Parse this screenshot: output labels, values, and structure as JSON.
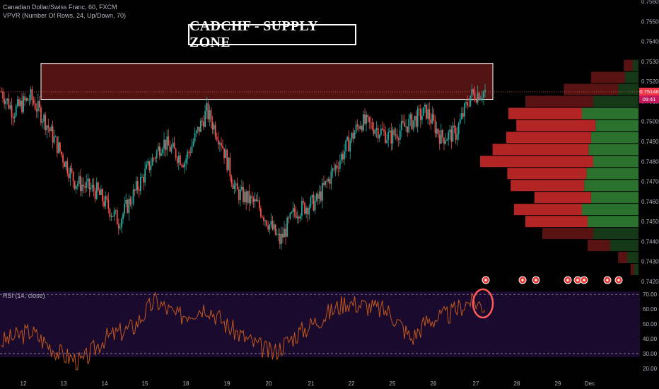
{
  "header": {
    "symbol_line": "Canadian Dollar/Swiss Franc, 60, FXCM",
    "vpvr_line": "VPVR (Number Of Rows, 24, Up/Down, 70)",
    "title": "CADCHF - SUPPLY ZONE"
  },
  "price_scale": {
    "current_price": "0.75148",
    "countdown": "09:41",
    "current_tag_color": "#f23645",
    "countdown_tag_color": "#c2185b"
  },
  "rsi": {
    "label": "RSI (14, close)",
    "upper_band": 70,
    "lower_band": 30
  },
  "colors": {
    "up_candle": "#26a69a",
    "down_candle": "#ef5350",
    "supply_zone": "#6d1a1a",
    "rsi_line": "#c2571a",
    "rsi_background": "#1a0a2e",
    "vpvr_up": "#2e7d32",
    "vpvr_down": "#c62828"
  },
  "chart_data": [
    {
      "type": "candlestick",
      "x_tick_labels": [
        "12",
        "13",
        "14",
        "15",
        "18",
        "19",
        "20",
        "21",
        "22",
        "25",
        "26",
        "27",
        "28",
        "29",
        "Dec"
      ],
      "y_tick_labels": [
        "0.74200",
        "0.74300",
        "0.74400",
        "0.74500",
        "0.74600",
        "0.74700",
        "0.74800",
        "0.74900",
        "0.75000",
        "0.75100",
        "0.75200",
        "0.75300",
        "0.75400",
        "0.75500",
        "0.75600"
      ],
      "ylim": [
        0.742,
        0.756
      ],
      "supply_zone": [
        0.7511,
        0.7529
      ],
      "waypoints": [
        [
          0,
          0.7515
        ],
        [
          8,
          0.7505
        ],
        [
          20,
          0.7512
        ],
        [
          30,
          0.75
        ],
        [
          50,
          0.747
        ],
        [
          65,
          0.7465
        ],
        [
          80,
          0.745
        ],
        [
          95,
          0.747
        ],
        [
          110,
          0.749
        ],
        [
          125,
          0.748
        ],
        [
          140,
          0.7505
        ],
        [
          150,
          0.749
        ],
        [
          160,
          0.7465
        ],
        [
          175,
          0.7458
        ],
        [
          190,
          0.744
        ],
        [
          200,
          0.7455
        ],
        [
          215,
          0.746
        ],
        [
          230,
          0.748
        ],
        [
          245,
          0.75
        ],
        [
          255,
          0.7497
        ],
        [
          265,
          0.7492
        ],
        [
          280,
          0.75
        ],
        [
          290,
          0.7505
        ],
        [
          300,
          0.7492
        ],
        [
          310,
          0.7494
        ],
        [
          320,
          0.7513
        ],
        [
          330,
          0.7515
        ]
      ],
      "volume_profile": {
        "price_levels": [
          0.7426,
          0.7432,
          0.7438,
          0.7444,
          0.745,
          0.7456,
          0.7462,
          0.7468,
          0.7474,
          0.748,
          0.7486,
          0.7492,
          0.7498,
          0.7504,
          0.751,
          0.7516,
          0.7522,
          0.7528
        ],
        "up_volume": [
          4,
          10,
          25,
          40,
          45,
          50,
          42,
          48,
          46,
          40,
          44,
          42,
          38,
          50,
          40,
          18,
          12,
          5
        ],
        "down_volume": [
          3,
          8,
          20,
          45,
          55,
          60,
          50,
          65,
          70,
          100,
          85,
          75,
          70,
          65,
          60,
          48,
          30,
          8
        ]
      }
    },
    {
      "type": "line",
      "name": "RSI (14, close)",
      "y_tick_labels": [
        "20.00",
        "30.00",
        "40.00",
        "50.00",
        "60.00",
        "70.00"
      ],
      "ylim": [
        18,
        72
      ],
      "waypoints": [
        [
          0,
          38
        ],
        [
          20,
          45
        ],
        [
          40,
          30
        ],
        [
          55,
          24
        ],
        [
          70,
          40
        ],
        [
          90,
          48
        ],
        [
          105,
          66
        ],
        [
          120,
          55
        ],
        [
          140,
          62
        ],
        [
          155,
          48
        ],
        [
          170,
          38
        ],
        [
          185,
          30
        ],
        [
          200,
          42
        ],
        [
          215,
          52
        ],
        [
          235,
          65
        ],
        [
          250,
          62
        ],
        [
          265,
          58
        ],
        [
          280,
          40
        ],
        [
          290,
          52
        ],
        [
          305,
          56
        ],
        [
          320,
          66
        ],
        [
          330,
          62
        ]
      ]
    }
  ]
}
